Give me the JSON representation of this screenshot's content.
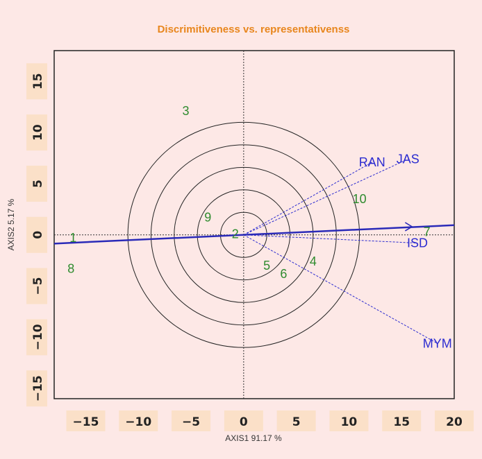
{
  "chart_data": {
    "type": "scatter",
    "subtype": "GGE biplot",
    "title": "Discrimitiveness vs. representativenss",
    "xlabel": "AXIS1 91.17 %",
    "ylabel": "AXIS2 5.17 %",
    "xlim": [
      -18,
      20
    ],
    "ylim": [
      -16,
      18
    ],
    "xticks": [
      -15,
      -10,
      -5,
      0,
      5,
      10,
      15,
      20
    ],
    "yticks": [
      -15,
      -10,
      -5,
      0,
      5,
      10,
      15
    ],
    "xtick_labels": [
      "−15",
      "−10",
      "−5",
      "0",
      "5",
      "10",
      "15",
      "20"
    ],
    "ytick_labels": [
      "−15",
      "−10",
      "−5",
      "0",
      "5",
      "10",
      "15"
    ],
    "grid": false,
    "concentric_circle_radii": [
      2.2,
      4.4,
      6.6,
      8.8,
      11.0
    ],
    "average_environment_axis": {
      "x": [
        -18,
        20
      ],
      "y": [
        -0.85,
        0.95
      ],
      "arrow_at": [
        16,
        0.8
      ]
    },
    "genotypes": [
      {
        "label": "1",
        "x": -16.2,
        "y": -0.3
      },
      {
        "label": "2",
        "x": -0.8,
        "y": 0.1
      },
      {
        "label": "3",
        "x": -5.5,
        "y": 12.1
      },
      {
        "label": "4",
        "x": 6.6,
        "y": -2.6
      },
      {
        "label": "5",
        "x": 2.2,
        "y": -3.0
      },
      {
        "label": "6",
        "x": 3.8,
        "y": -3.8
      },
      {
        "label": "7",
        "x": 17.4,
        "y": 0.3
      },
      {
        "label": "8",
        "x": -16.4,
        "y": -3.3
      },
      {
        "label": "9",
        "x": -3.4,
        "y": 1.7
      },
      {
        "label": "10",
        "x": 11.0,
        "y": 3.5
      }
    ],
    "environments": [
      {
        "label": "RAN",
        "x": 12.2,
        "y": 7.1
      },
      {
        "label": "JAS",
        "x": 15.6,
        "y": 7.4
      },
      {
        "label": "ISD",
        "x": 16.5,
        "y": -0.8
      },
      {
        "label": "MYM",
        "x": 18.4,
        "y": -10.6
      }
    ],
    "colors": {
      "background": "#fde8e6",
      "tick_label_background": "#fbe0c8",
      "title": "#e8861d",
      "genotype": "#2e8b2e",
      "environment": "#2b2bd0",
      "circles": "#222222"
    }
  }
}
